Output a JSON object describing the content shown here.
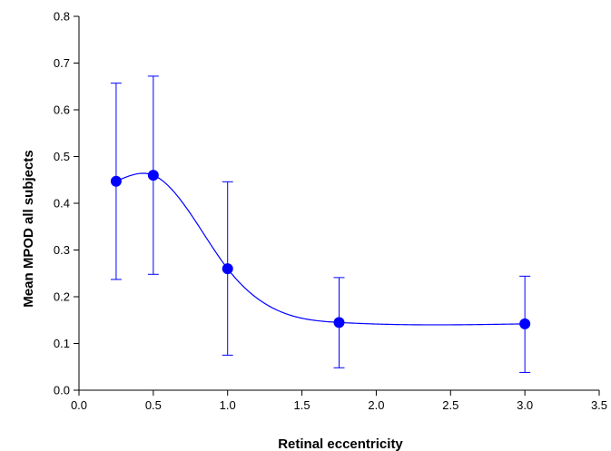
{
  "chart_data": {
    "type": "scatter",
    "title": "",
    "xlabel": "Retinal eccentricity",
    "ylabel": "Mean MPOD all subjects",
    "xlim": [
      0.0,
      3.5
    ],
    "ylim": [
      0.0,
      0.8
    ],
    "x_ticks": [
      "0.0",
      "0.5",
      "1.0",
      "1.5",
      "2.0",
      "2.5",
      "3.0",
      "3.5"
    ],
    "y_ticks": [
      "0.0",
      "0.1",
      "0.2",
      "0.3",
      "0.4",
      "0.5",
      "0.6",
      "0.7",
      "0.8"
    ],
    "grid": false,
    "legend": "none",
    "series": [
      {
        "x": [
          0.25,
          0.5,
          1.0,
          1.75,
          3.0
        ],
        "y": [
          0.447,
          0.46,
          0.26,
          0.145,
          0.142
        ],
        "error_low": [
          0.237,
          0.248,
          0.075,
          0.048,
          0.038
        ],
        "error_high": [
          0.657,
          0.672,
          0.446,
          0.241,
          0.244
        ],
        "smooth_line": true
      }
    ],
    "colors": {
      "series": "#0000ff",
      "axis": "#000000"
    }
  }
}
